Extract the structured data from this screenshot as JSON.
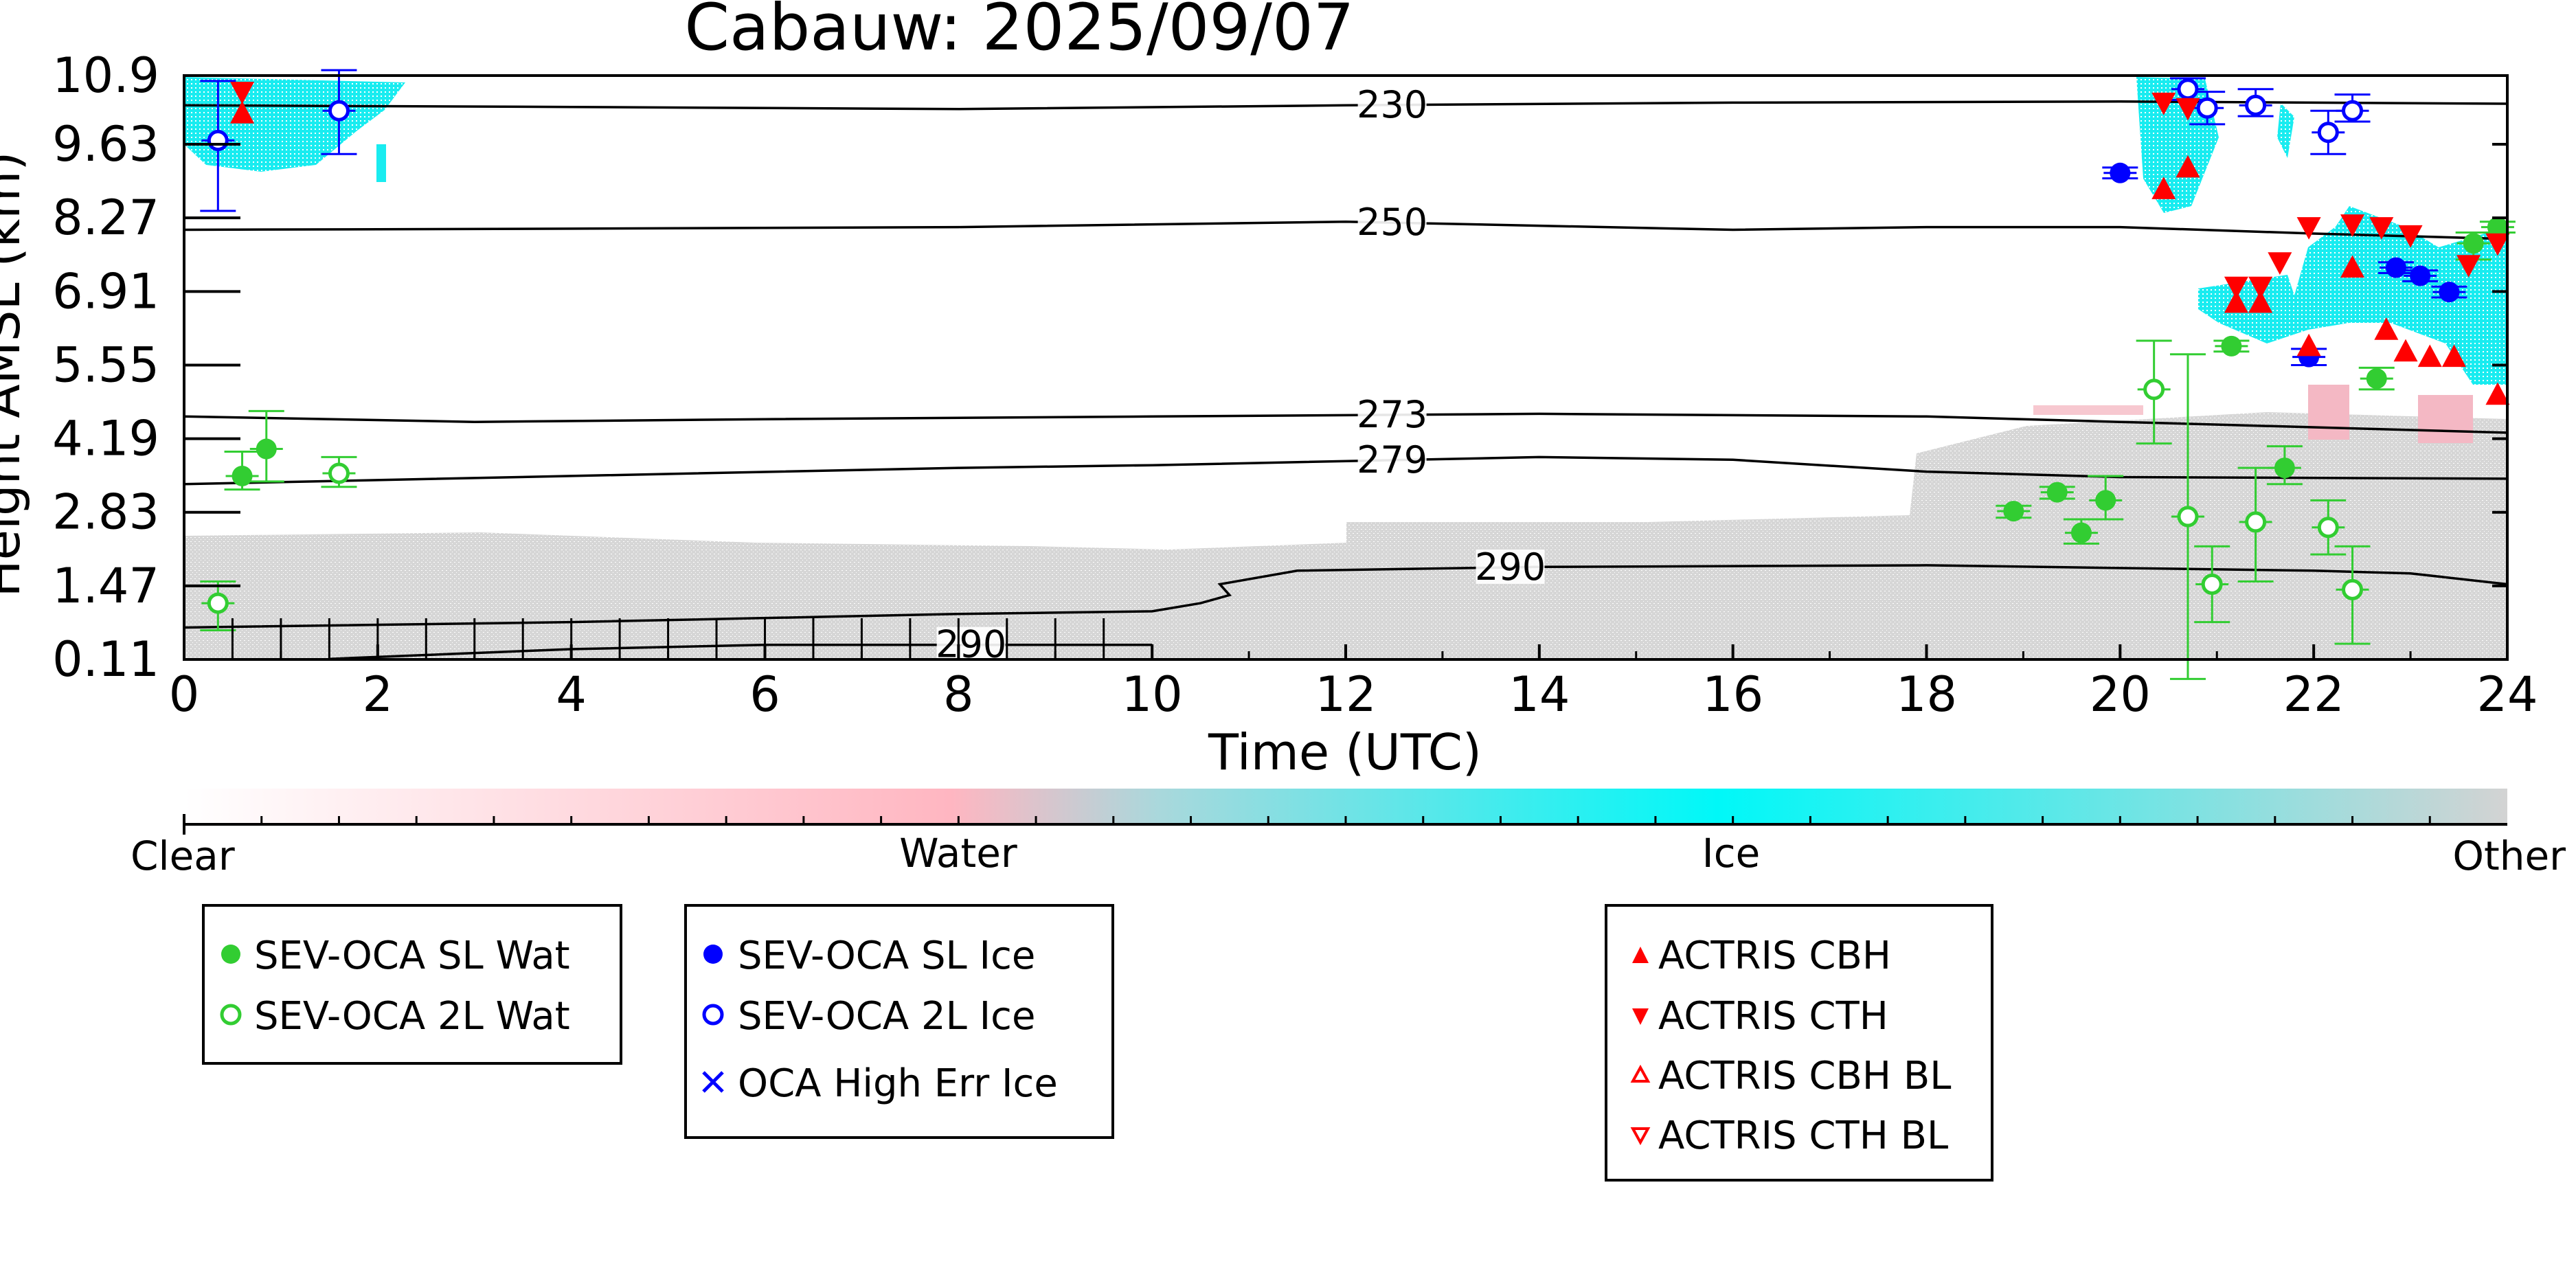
{
  "chart_data": {
    "type": "scatter",
    "title": "Cabauw: 2025/09/07",
    "xlabel": "Time (UTC)",
    "ylabel": "Height AMSL (km)",
    "xlim": [
      0,
      24
    ],
    "ylim": [
      0.11,
      10.9
    ],
    "x_ticks": [
      "0",
      "2",
      "4",
      "6",
      "8",
      "10",
      "12",
      "14",
      "16",
      "18",
      "20",
      "22",
      "24"
    ],
    "y_ticks": [
      "0.11",
      "1.47",
      "2.83",
      "4.19",
      "5.55",
      "6.91",
      "8.27",
      "9.63",
      "10.9"
    ],
    "colorbar": {
      "labels": [
        "Clear",
        "Water",
        "Ice",
        "Other"
      ],
      "colors": [
        "#ffffff",
        "#ffb6c1",
        "#00ffff",
        "#d3d3d3"
      ]
    },
    "contours": [
      {
        "label": "230",
        "values": [
          [
            0,
            10.35
          ],
          [
            4,
            10.32
          ],
          [
            8,
            10.28
          ],
          [
            12,
            10.35
          ],
          [
            16,
            10.4
          ],
          [
            20,
            10.42
          ],
          [
            24,
            10.38
          ]
        ]
      },
      {
        "label": "250",
        "values": [
          [
            0,
            8.05
          ],
          [
            4,
            8.07
          ],
          [
            8,
            8.1
          ],
          [
            12,
            8.2
          ],
          [
            16,
            8.05
          ],
          [
            18,
            8.1
          ],
          [
            20,
            8.1
          ],
          [
            22,
            7.98
          ],
          [
            24,
            7.88
          ]
        ]
      },
      {
        "label": "273",
        "values": [
          [
            0,
            4.6
          ],
          [
            3,
            4.5
          ],
          [
            6,
            4.55
          ],
          [
            10,
            4.6
          ],
          [
            14,
            4.65
          ],
          [
            18,
            4.6
          ],
          [
            20,
            4.5
          ],
          [
            22,
            4.4
          ],
          [
            24,
            4.3
          ]
        ]
      },
      {
        "label": "279",
        "values": [
          [
            0,
            3.35
          ],
          [
            4,
            3.5
          ],
          [
            8,
            3.65
          ],
          [
            10,
            3.7
          ],
          [
            14,
            3.85
          ],
          [
            16,
            3.8
          ],
          [
            18,
            3.58
          ],
          [
            20,
            3.48
          ],
          [
            24,
            3.45
          ]
        ]
      },
      {
        "label": "290",
        "values": [
          [
            0,
            0.7
          ],
          [
            4,
            0.8
          ],
          [
            8,
            0.95
          ],
          [
            10,
            1.0
          ],
          [
            10.5,
            1.15
          ],
          [
            10.8,
            1.3
          ],
          [
            10.7,
            1.5
          ],
          [
            11.5,
            1.75
          ],
          [
            14,
            1.82
          ],
          [
            18,
            1.85
          ],
          [
            22,
            1.75
          ],
          [
            23,
            1.7
          ],
          [
            24,
            1.5
          ]
        ]
      },
      {
        "label": "290",
        "values": [
          [
            1.5,
            0.12
          ],
          [
            4,
            0.3
          ],
          [
            6,
            0.38
          ],
          [
            8,
            0.38
          ],
          [
            10,
            0.38
          ]
        ]
      }
    ],
    "series": [
      {
        "name": "SEV-OCA SL Wat",
        "color": "#32cd32",
        "filled": true,
        "marker": "circle",
        "points": [
          [
            0.6,
            3.5,
            0.25,
            0.45
          ],
          [
            0.85,
            4.0,
            0.6,
            0.7
          ],
          [
            18.9,
            2.85,
            0.12,
            0.1
          ],
          [
            19.35,
            3.2,
            0.12,
            0.1
          ],
          [
            19.6,
            2.45,
            0.2,
            0.25
          ],
          [
            19.85,
            3.05,
            0.35,
            0.45
          ],
          [
            21.15,
            5.9,
            0.1,
            0.1
          ],
          [
            21.7,
            3.65,
            0.3,
            0.4
          ],
          [
            22.65,
            5.3,
            0.2,
            0.2
          ],
          [
            23.65,
            7.8,
            0.3,
            0.2
          ],
          [
            23.9,
            8.1,
            0.1,
            0.1
          ]
        ]
      },
      {
        "name": "SEV-OCA 2L Wat",
        "color": "#32cd32",
        "filled": false,
        "marker": "circle",
        "points": [
          [
            0.35,
            1.15,
            0.5,
            0.4
          ],
          [
            1.6,
            3.55,
            0.25,
            0.3
          ],
          [
            20.35,
            5.1,
            1.0,
            0.9
          ],
          [
            20.7,
            2.75,
            3.0,
            3.0
          ],
          [
            20.95,
            1.5,
            0.7,
            0.7
          ],
          [
            21.4,
            2.65,
            1.1,
            1.0
          ],
          [
            22.15,
            2.55,
            0.5,
            0.5
          ],
          [
            22.4,
            1.4,
            1.0,
            0.8
          ]
        ]
      },
      {
        "name": "SEV-OCA SL Ice",
        "color": "#0000ff",
        "filled": true,
        "marker": "circle",
        "points": [
          [
            20.0,
            9.1,
            0.1,
            0.1
          ],
          [
            21.95,
            5.7,
            0.15,
            0.15
          ],
          [
            22.85,
            7.35,
            0.1,
            0.1
          ],
          [
            23.1,
            7.2,
            0.1,
            0.1
          ],
          [
            23.4,
            6.9,
            0.1,
            0.1
          ]
        ]
      },
      {
        "name": "SEV-OCA 2L Ice",
        "color": "#0000ff",
        "filled": false,
        "marker": "circle",
        "points": [
          [
            0.35,
            9.7,
            1.3,
            1.1
          ],
          [
            1.6,
            10.25,
            0.8,
            0.75
          ],
          [
            20.7,
            10.65,
            0.2,
            0.2
          ],
          [
            20.9,
            10.3,
            0.3,
            0.3
          ],
          [
            21.4,
            10.35,
            0.2,
            0.3
          ],
          [
            22.15,
            9.85,
            0.4,
            0.4
          ],
          [
            22.4,
            10.25,
            0.2,
            0.3
          ]
        ]
      },
      {
        "name": "OCA High Err Ice",
        "color": "#0000ff",
        "filled": false,
        "marker": "x",
        "points": []
      },
      {
        "name": "ACTRIS CBH",
        "color": "#ff0000",
        "filled": true,
        "marker": "triangle-up",
        "points": [
          [
            0.6,
            10.2
          ],
          [
            20.45,
            8.8
          ],
          [
            20.7,
            9.2
          ],
          [
            21.2,
            6.7
          ],
          [
            21.45,
            6.7
          ],
          [
            21.95,
            5.9
          ],
          [
            22.4,
            7.35
          ],
          [
            22.75,
            6.2
          ],
          [
            22.95,
            5.8
          ],
          [
            23.2,
            5.7
          ],
          [
            23.45,
            5.7
          ],
          [
            23.9,
            5.0
          ]
        ]
      },
      {
        "name": "ACTRIS CTH",
        "color": "#ff0000",
        "filled": true,
        "marker": "triangle-down",
        "points": [
          [
            0.6,
            10.6
          ],
          [
            20.45,
            10.4
          ],
          [
            20.7,
            10.3
          ],
          [
            21.2,
            7.0
          ],
          [
            21.45,
            7.0
          ],
          [
            21.65,
            7.45
          ],
          [
            21.95,
            8.1
          ],
          [
            22.4,
            8.15
          ],
          [
            22.7,
            8.1
          ],
          [
            23.0,
            7.95
          ],
          [
            23.6,
            7.4
          ],
          [
            23.9,
            7.8
          ]
        ]
      },
      {
        "name": "ACTRIS CBH BL",
        "color": "#ff0000",
        "filled": false,
        "marker": "triangle-up",
        "points": []
      },
      {
        "name": "ACTRIS CTH BL",
        "color": "#ff0000",
        "filled": false,
        "marker": "triangle-down",
        "points": []
      }
    ]
  }
}
